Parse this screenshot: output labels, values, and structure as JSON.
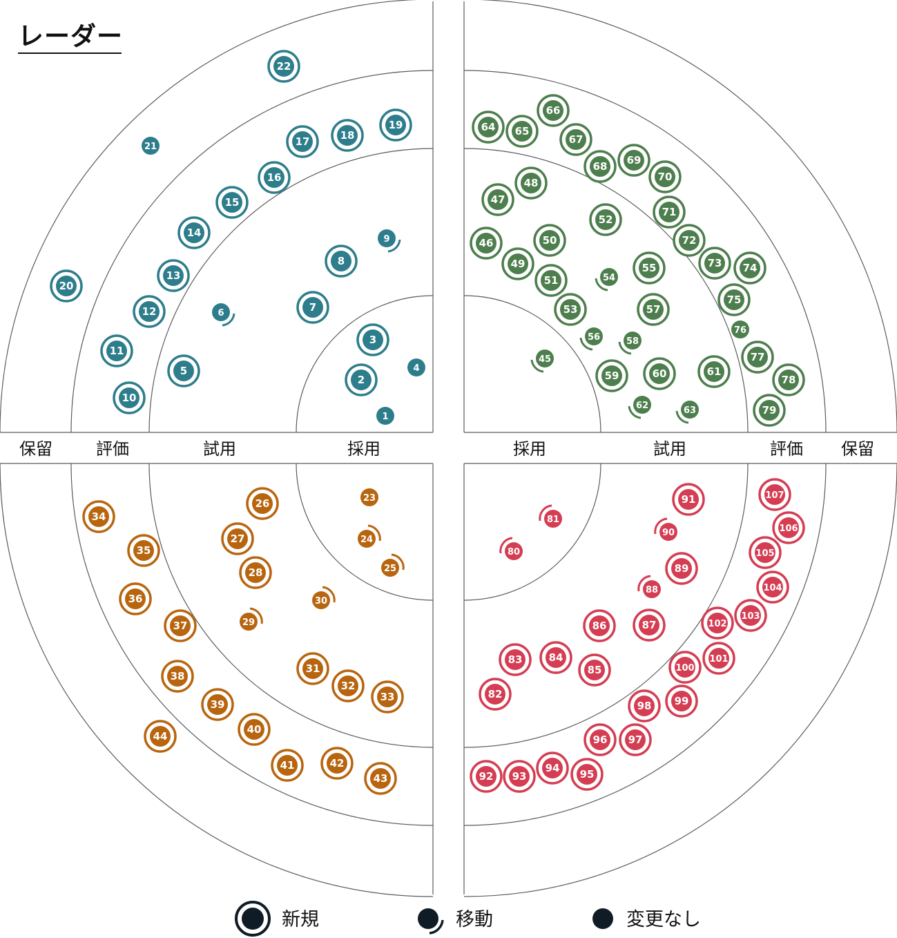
{
  "title": "レーダー",
  "rings": [
    "採用",
    "試用",
    "評価",
    "保留"
  ],
  "legend": [
    {
      "key": "new",
      "label": "新規"
    },
    {
      "key": "moved",
      "label": "移動"
    },
    {
      "key": "none",
      "label": "変更なし"
    }
  ],
  "quadrants": [
    {
      "key": "tl",
      "color": "#2e7d8c",
      "blips": [
        {
          "n": "1",
          "s": "none"
        },
        {
          "n": "2",
          "s": "new"
        },
        {
          "n": "3",
          "s": "new"
        },
        {
          "n": "4",
          "s": "none"
        },
        {
          "n": "5",
          "s": "new"
        },
        {
          "n": "6",
          "s": "moved"
        },
        {
          "n": "7",
          "s": "new"
        },
        {
          "n": "8",
          "s": "new"
        },
        {
          "n": "9",
          "s": "moved"
        },
        {
          "n": "10",
          "s": "new"
        },
        {
          "n": "11",
          "s": "new"
        },
        {
          "n": "12",
          "s": "new"
        },
        {
          "n": "13",
          "s": "new"
        },
        {
          "n": "14",
          "s": "new"
        },
        {
          "n": "15",
          "s": "new"
        },
        {
          "n": "16",
          "s": "new"
        },
        {
          "n": "17",
          "s": "new"
        },
        {
          "n": "18",
          "s": "new"
        },
        {
          "n": "19",
          "s": "new"
        },
        {
          "n": "20",
          "s": "new"
        },
        {
          "n": "21",
          "s": "none"
        },
        {
          "n": "22",
          "s": "new"
        }
      ]
    },
    {
      "key": "tr",
      "color": "#4d7e4d",
      "blips": [
        {
          "n": "45",
          "s": "moved"
        },
        {
          "n": "46",
          "s": "new"
        },
        {
          "n": "47",
          "s": "new"
        },
        {
          "n": "48",
          "s": "new"
        },
        {
          "n": "49",
          "s": "new"
        },
        {
          "n": "50",
          "s": "new"
        },
        {
          "n": "51",
          "s": "new"
        },
        {
          "n": "52",
          "s": "new"
        },
        {
          "n": "53",
          "s": "new"
        },
        {
          "n": "54",
          "s": "moved"
        },
        {
          "n": "55",
          "s": "new"
        },
        {
          "n": "56",
          "s": "moved"
        },
        {
          "n": "57",
          "s": "new"
        },
        {
          "n": "58",
          "s": "moved"
        },
        {
          "n": "59",
          "s": "new"
        },
        {
          "n": "60",
          "s": "new"
        },
        {
          "n": "61",
          "s": "new"
        },
        {
          "n": "62",
          "s": "moved"
        },
        {
          "n": "63",
          "s": "moved"
        },
        {
          "n": "64",
          "s": "new"
        },
        {
          "n": "65",
          "s": "new"
        },
        {
          "n": "66",
          "s": "new"
        },
        {
          "n": "67",
          "s": "new"
        },
        {
          "n": "68",
          "s": "new"
        },
        {
          "n": "69",
          "s": "new"
        },
        {
          "n": "70",
          "s": "new"
        },
        {
          "n": "71",
          "s": "new"
        },
        {
          "n": "72",
          "s": "new"
        },
        {
          "n": "73",
          "s": "new"
        },
        {
          "n": "74",
          "s": "new"
        },
        {
          "n": "75",
          "s": "new"
        },
        {
          "n": "76",
          "s": "none"
        },
        {
          "n": "77",
          "s": "new"
        },
        {
          "n": "78",
          "s": "new"
        },
        {
          "n": "79",
          "s": "new"
        }
      ]
    },
    {
      "key": "bl",
      "color": "#b8650f",
      "blips": [
        {
          "n": "23",
          "s": "none"
        },
        {
          "n": "24",
          "s": "moved"
        },
        {
          "n": "25",
          "s": "moved"
        },
        {
          "n": "26",
          "s": "new"
        },
        {
          "n": "27",
          "s": "new"
        },
        {
          "n": "28",
          "s": "new"
        },
        {
          "n": "29",
          "s": "moved"
        },
        {
          "n": "30",
          "s": "moved"
        },
        {
          "n": "31",
          "s": "new"
        },
        {
          "n": "32",
          "s": "new"
        },
        {
          "n": "33",
          "s": "new"
        },
        {
          "n": "34",
          "s": "new"
        },
        {
          "n": "35",
          "s": "new"
        },
        {
          "n": "36",
          "s": "new"
        },
        {
          "n": "37",
          "s": "new"
        },
        {
          "n": "38",
          "s": "new"
        },
        {
          "n": "39",
          "s": "new"
        },
        {
          "n": "40",
          "s": "new"
        },
        {
          "n": "41",
          "s": "new"
        },
        {
          "n": "42",
          "s": "new"
        },
        {
          "n": "43",
          "s": "new"
        },
        {
          "n": "44",
          "s": "new"
        }
      ]
    },
    {
      "key": "br",
      "color": "#d43d52",
      "blips": [
        {
          "n": "80",
          "s": "moved"
        },
        {
          "n": "81",
          "s": "moved"
        },
        {
          "n": "82",
          "s": "new"
        },
        {
          "n": "83",
          "s": "new"
        },
        {
          "n": "84",
          "s": "new"
        },
        {
          "n": "85",
          "s": "new"
        },
        {
          "n": "86",
          "s": "new"
        },
        {
          "n": "87",
          "s": "new"
        },
        {
          "n": "88",
          "s": "moved"
        },
        {
          "n": "89",
          "s": "new"
        },
        {
          "n": "90",
          "s": "moved"
        },
        {
          "n": "91",
          "s": "new"
        },
        {
          "n": "92",
          "s": "new"
        },
        {
          "n": "93",
          "s": "new"
        },
        {
          "n": "94",
          "s": "new"
        },
        {
          "n": "95",
          "s": "new"
        },
        {
          "n": "96",
          "s": "new"
        },
        {
          "n": "97",
          "s": "new"
        },
        {
          "n": "98",
          "s": "new"
        },
        {
          "n": "99",
          "s": "new"
        },
        {
          "n": "100",
          "s": "new"
        },
        {
          "n": "101",
          "s": "new"
        },
        {
          "n": "102",
          "s": "new"
        },
        {
          "n": "103",
          "s": "new"
        },
        {
          "n": "104",
          "s": "new"
        },
        {
          "n": "105",
          "s": "new"
        },
        {
          "n": "106",
          "s": "new"
        },
        {
          "n": "107",
          "s": "new"
        }
      ]
    }
  ]
}
